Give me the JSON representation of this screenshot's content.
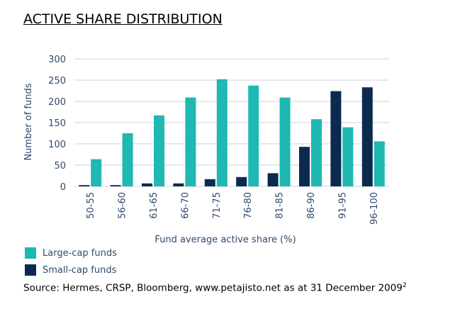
{
  "title": "ACTIVE SHARE DISTRIBUTION",
  "source": {
    "text": "Source: Hermes, CRSP, Bloomberg, www.petajisto.net as at 31 December 2009",
    "footnote_marker": "2"
  },
  "colors": {
    "large_cap": "#1fb8b2",
    "small_cap": "#0c2a4d",
    "axis_text": "#2e4a6e",
    "gridline": "#c8d3dc"
  },
  "chart_data": {
    "type": "bar",
    "xlabel": "Fund average active share (%)",
    "ylabel": "Number of funds",
    "ylim": [
      0,
      300
    ],
    "yticks": [
      0,
      50,
      100,
      150,
      200,
      250,
      300
    ],
    "grid": "horizontal",
    "legend_position": "bottom-left",
    "categories": [
      "50-55",
      "56-60",
      "61-65",
      "66-70",
      "71-75",
      "76-80",
      "81-85",
      "86-90",
      "91-95",
      "96-100"
    ],
    "series": [
      {
        "name": "Small-cap funds",
        "color": "#0c2a4d",
        "values": [
          3,
          3,
          7,
          7,
          17,
          22,
          31,
          93,
          224,
          233
        ]
      },
      {
        "name": "Large-cap funds",
        "color": "#1fb8b2",
        "values": [
          64,
          125,
          167,
          209,
          252,
          237,
          209,
          158,
          139,
          106
        ]
      }
    ]
  }
}
